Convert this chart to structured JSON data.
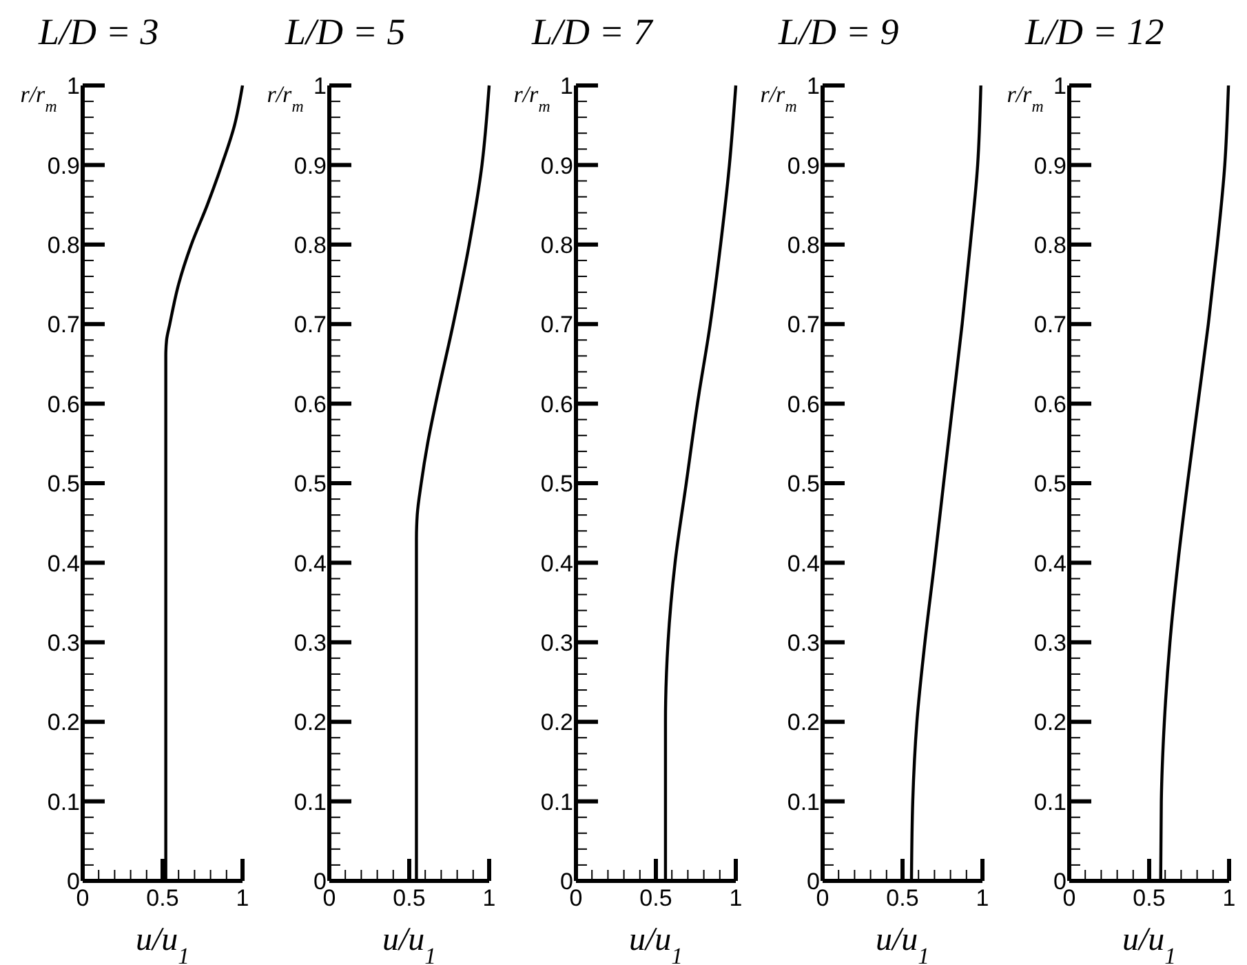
{
  "chart_data": [
    {
      "type": "line",
      "title": "L/D = 3",
      "xlabel": "u/u$_{1}$",
      "ylabel": "r/r$_{m}$",
      "xlim": [
        0,
        1
      ],
      "ylim": [
        0,
        1
      ],
      "line_style": "solid",
      "marker": "none",
      "grid": false,
      "xticks": [
        0,
        {
          "value": 0.1,
          "label": null
        },
        {
          "value": 0.2,
          "label": null
        },
        {
          "value": 0.3,
          "label": null
        },
        {
          "value": 0.4,
          "label": null
        },
        0.5,
        {
          "value": 0.6,
          "label": null
        },
        {
          "value": 0.7,
          "label": null
        },
        {
          "value": 0.8,
          "label": null
        },
        {
          "value": 0.9,
          "label": null
        },
        1
      ],
      "yticks": [
        0,
        {
          "value": 0.02,
          "label": null
        },
        {
          "value": 0.04,
          "label": null
        },
        {
          "value": 0.06,
          "label": null
        },
        {
          "value": 0.08,
          "label": null
        },
        0.1,
        {
          "value": 0.12,
          "label": null
        },
        {
          "value": 0.14,
          "label": null
        },
        {
          "value": 0.16,
          "label": null
        },
        {
          "value": 0.18,
          "label": null
        },
        0.2,
        {
          "value": 0.22,
          "label": null
        },
        {
          "value": 0.24,
          "label": null
        },
        {
          "value": 0.26,
          "label": null
        },
        {
          "value": 0.28,
          "label": null
        },
        0.3,
        {
          "value": 0.32,
          "label": null
        },
        {
          "value": 0.34,
          "label": null
        },
        {
          "value": 0.36,
          "label": null
        },
        {
          "value": 0.38,
          "label": null
        },
        0.4,
        {
          "value": 0.42,
          "label": null
        },
        {
          "value": 0.44,
          "label": null
        },
        {
          "value": 0.46,
          "label": null
        },
        {
          "value": 0.48,
          "label": null
        },
        0.5,
        {
          "value": 0.52,
          "label": null
        },
        {
          "value": 0.54,
          "label": null
        },
        {
          "value": 0.56,
          "label": null
        },
        {
          "value": 0.58,
          "label": null
        },
        0.6,
        {
          "value": 0.62,
          "label": null
        },
        {
          "value": 0.64,
          "label": null
        },
        {
          "value": 0.66,
          "label": null
        },
        {
          "value": 0.68,
          "label": null
        },
        0.7,
        {
          "value": 0.72,
          "label": null
        },
        {
          "value": 0.74,
          "label": null
        },
        {
          "value": 0.76,
          "label": null
        },
        {
          "value": 0.78,
          "label": null
        },
        0.8,
        {
          "value": 0.82,
          "label": null
        },
        {
          "value": 0.84,
          "label": null
        },
        {
          "value": 0.86,
          "label": null
        },
        {
          "value": 0.88,
          "label": null
        },
        0.9,
        {
          "value": 0.92,
          "label": null
        },
        {
          "value": 0.94,
          "label": null
        },
        {
          "value": 0.96,
          "label": null
        },
        {
          "value": 0.98,
          "label": null
        },
        1
      ],
      "series": [
        {
          "color": "#000000",
          "x": [
            0.52,
            0.52,
            0.525,
            0.545,
            0.6,
            0.68,
            0.78,
            0.87,
            0.95,
            1.0
          ],
          "values": [
            0,
            0.66,
            0.68,
            0.7,
            0.75,
            0.8,
            0.85,
            0.9,
            0.95,
            1
          ]
        }
      ]
    },
    {
      "type": "line",
      "title": "L/D = 5",
      "xlabel": "u/u$_{1}$",
      "ylabel": "r/r$_{m}$",
      "xlim": [
        0,
        1
      ],
      "ylim": [
        0,
        1
      ],
      "line_style": "solid",
      "marker": "none",
      "grid": false,
      "xticks": [
        0,
        {
          "value": 0.1,
          "label": null
        },
        {
          "value": 0.2,
          "label": null
        },
        {
          "value": 0.3,
          "label": null
        },
        {
          "value": 0.4,
          "label": null
        },
        0.5,
        {
          "value": 0.6,
          "label": null
        },
        {
          "value": 0.7,
          "label": null
        },
        {
          "value": 0.8,
          "label": null
        },
        {
          "value": 0.9,
          "label": null
        },
        1
      ],
      "yticks": [
        0,
        {
          "value": 0.02,
          "label": null
        },
        {
          "value": 0.04,
          "label": null
        },
        {
          "value": 0.06,
          "label": null
        },
        {
          "value": 0.08,
          "label": null
        },
        0.1,
        {
          "value": 0.12,
          "label": null
        },
        {
          "value": 0.14,
          "label": null
        },
        {
          "value": 0.16,
          "label": null
        },
        {
          "value": 0.18,
          "label": null
        },
        0.2,
        {
          "value": 0.22,
          "label": null
        },
        {
          "value": 0.24,
          "label": null
        },
        {
          "value": 0.26,
          "label": null
        },
        {
          "value": 0.28,
          "label": null
        },
        0.3,
        {
          "value": 0.32,
          "label": null
        },
        {
          "value": 0.34,
          "label": null
        },
        {
          "value": 0.36,
          "label": null
        },
        {
          "value": 0.38,
          "label": null
        },
        0.4,
        {
          "value": 0.42,
          "label": null
        },
        {
          "value": 0.44,
          "label": null
        },
        {
          "value": 0.46,
          "label": null
        },
        {
          "value": 0.48,
          "label": null
        },
        0.5,
        {
          "value": 0.52,
          "label": null
        },
        {
          "value": 0.54,
          "label": null
        },
        {
          "value": 0.56,
          "label": null
        },
        {
          "value": 0.58,
          "label": null
        },
        0.6,
        {
          "value": 0.62,
          "label": null
        },
        {
          "value": 0.64,
          "label": null
        },
        {
          "value": 0.66,
          "label": null
        },
        {
          "value": 0.68,
          "label": null
        },
        0.7,
        {
          "value": 0.72,
          "label": null
        },
        {
          "value": 0.74,
          "label": null
        },
        {
          "value": 0.76,
          "label": null
        },
        {
          "value": 0.78,
          "label": null
        },
        0.8,
        {
          "value": 0.82,
          "label": null
        },
        {
          "value": 0.84,
          "label": null
        },
        {
          "value": 0.86,
          "label": null
        },
        {
          "value": 0.88,
          "label": null
        },
        0.9,
        {
          "value": 0.92,
          "label": null
        },
        {
          "value": 0.94,
          "label": null
        },
        {
          "value": 0.96,
          "label": null
        },
        {
          "value": 0.98,
          "label": null
        },
        1
      ],
      "series": [
        {
          "color": "#000000",
          "x": [
            0.545,
            0.545,
            0.55,
            0.575,
            0.615,
            0.665,
            0.775,
            0.875,
            0.955,
            1.0
          ],
          "values": [
            0,
            0.43,
            0.46,
            0.5,
            0.55,
            0.6,
            0.7,
            0.8,
            0.9,
            1
          ]
        }
      ]
    },
    {
      "type": "line",
      "title": "L/D = 7",
      "xlabel": "u/u$_{1}$",
      "ylabel": "r/r$_{m}$",
      "xlim": [
        0,
        1
      ],
      "ylim": [
        0,
        1
      ],
      "line_style": "solid",
      "marker": "none",
      "grid": false,
      "xticks": [
        0,
        {
          "value": 0.1,
          "label": null
        },
        {
          "value": 0.2,
          "label": null
        },
        {
          "value": 0.3,
          "label": null
        },
        {
          "value": 0.4,
          "label": null
        },
        0.5,
        {
          "value": 0.6,
          "label": null
        },
        {
          "value": 0.7,
          "label": null
        },
        {
          "value": 0.8,
          "label": null
        },
        {
          "value": 0.9,
          "label": null
        },
        1
      ],
      "yticks": [
        0,
        {
          "value": 0.02,
          "label": null
        },
        {
          "value": 0.04,
          "label": null
        },
        {
          "value": 0.06,
          "label": null
        },
        {
          "value": 0.08,
          "label": null
        },
        0.1,
        {
          "value": 0.12,
          "label": null
        },
        {
          "value": 0.14,
          "label": null
        },
        {
          "value": 0.16,
          "label": null
        },
        {
          "value": 0.18,
          "label": null
        },
        0.2,
        {
          "value": 0.22,
          "label": null
        },
        {
          "value": 0.24,
          "label": null
        },
        {
          "value": 0.26,
          "label": null
        },
        {
          "value": 0.28,
          "label": null
        },
        0.3,
        {
          "value": 0.32,
          "label": null
        },
        {
          "value": 0.34,
          "label": null
        },
        {
          "value": 0.36,
          "label": null
        },
        {
          "value": 0.38,
          "label": null
        },
        0.4,
        {
          "value": 0.42,
          "label": null
        },
        {
          "value": 0.44,
          "label": null
        },
        {
          "value": 0.46,
          "label": null
        },
        {
          "value": 0.48,
          "label": null
        },
        0.5,
        {
          "value": 0.52,
          "label": null
        },
        {
          "value": 0.54,
          "label": null
        },
        {
          "value": 0.56,
          "label": null
        },
        {
          "value": 0.58,
          "label": null
        },
        0.6,
        {
          "value": 0.62,
          "label": null
        },
        {
          "value": 0.64,
          "label": null
        },
        {
          "value": 0.66,
          "label": null
        },
        {
          "value": 0.68,
          "label": null
        },
        0.7,
        {
          "value": 0.72,
          "label": null
        },
        {
          "value": 0.74,
          "label": null
        },
        {
          "value": 0.76,
          "label": null
        },
        {
          "value": 0.78,
          "label": null
        },
        0.8,
        {
          "value": 0.82,
          "label": null
        },
        {
          "value": 0.84,
          "label": null
        },
        {
          "value": 0.86,
          "label": null
        },
        {
          "value": 0.88,
          "label": null
        },
        0.9,
        {
          "value": 0.92,
          "label": null
        },
        {
          "value": 0.94,
          "label": null
        },
        {
          "value": 0.96,
          "label": null
        },
        {
          "value": 0.98,
          "label": null
        },
        1
      ],
      "series": [
        {
          "color": "#000000",
          "x": [
            0.56,
            0.56,
            0.576,
            0.62,
            0.69,
            0.76,
            0.84,
            0.905,
            0.96,
            1.0
          ],
          "values": [
            0,
            0.2,
            0.3,
            0.4,
            0.5,
            0.6,
            0.7,
            0.8,
            0.9,
            1
          ]
        }
      ]
    },
    {
      "type": "line",
      "title": "L/D = 9",
      "xlabel": "u/u$_{1}$",
      "ylabel": "r/r$_{m}$",
      "xlim": [
        0,
        1
      ],
      "ylim": [
        0,
        1
      ],
      "line_style": "solid",
      "marker": "none",
      "grid": false,
      "xticks": [
        0,
        {
          "value": 0.1,
          "label": null
        },
        {
          "value": 0.2,
          "label": null
        },
        {
          "value": 0.3,
          "label": null
        },
        {
          "value": 0.4,
          "label": null
        },
        0.5,
        {
          "value": 0.6,
          "label": null
        },
        {
          "value": 0.7,
          "label": null
        },
        {
          "value": 0.8,
          "label": null
        },
        {
          "value": 0.9,
          "label": null
        },
        1
      ],
      "yticks": [
        0,
        {
          "value": 0.02,
          "label": null
        },
        {
          "value": 0.04,
          "label": null
        },
        {
          "value": 0.06,
          "label": null
        },
        {
          "value": 0.08,
          "label": null
        },
        0.1,
        {
          "value": 0.12,
          "label": null
        },
        {
          "value": 0.14,
          "label": null
        },
        {
          "value": 0.16,
          "label": null
        },
        {
          "value": 0.18,
          "label": null
        },
        0.2,
        {
          "value": 0.22,
          "label": null
        },
        {
          "value": 0.24,
          "label": null
        },
        {
          "value": 0.26,
          "label": null
        },
        {
          "value": 0.28,
          "label": null
        },
        0.3,
        {
          "value": 0.32,
          "label": null
        },
        {
          "value": 0.34,
          "label": null
        },
        {
          "value": 0.36,
          "label": null
        },
        {
          "value": 0.38,
          "label": null
        },
        0.4,
        {
          "value": 0.42,
          "label": null
        },
        {
          "value": 0.44,
          "label": null
        },
        {
          "value": 0.46,
          "label": null
        },
        {
          "value": 0.48,
          "label": null
        },
        0.5,
        {
          "value": 0.52,
          "label": null
        },
        {
          "value": 0.54,
          "label": null
        },
        {
          "value": 0.56,
          "label": null
        },
        {
          "value": 0.58,
          "label": null
        },
        0.6,
        {
          "value": 0.62,
          "label": null
        },
        {
          "value": 0.64,
          "label": null
        },
        {
          "value": 0.66,
          "label": null
        },
        {
          "value": 0.68,
          "label": null
        },
        0.7,
        {
          "value": 0.72,
          "label": null
        },
        {
          "value": 0.74,
          "label": null
        },
        {
          "value": 0.76,
          "label": null
        },
        {
          "value": 0.78,
          "label": null
        },
        0.8,
        {
          "value": 0.82,
          "label": null
        },
        {
          "value": 0.84,
          "label": null
        },
        {
          "value": 0.86,
          "label": null
        },
        {
          "value": 0.88,
          "label": null
        },
        0.9,
        {
          "value": 0.92,
          "label": null
        },
        {
          "value": 0.94,
          "label": null
        },
        {
          "value": 0.96,
          "label": null
        },
        {
          "value": 0.98,
          "label": null
        },
        1
      ],
      "series": [
        {
          "color": "#000000",
          "x": [
            0.556,
            0.564,
            0.59,
            0.64,
            0.7,
            0.757,
            0.815,
            0.873,
            0.924,
            0.97,
            0.99
          ],
          "values": [
            0,
            0.1,
            0.2,
            0.3,
            0.4,
            0.5,
            0.6,
            0.7,
            0.8,
            0.9,
            1
          ]
        }
      ]
    },
    {
      "type": "line",
      "title": "L/D = 12",
      "xlabel": "u/u$_{1}$",
      "ylabel": "r/r$_{m}$",
      "xlim": [
        0,
        1
      ],
      "ylim": [
        0,
        1
      ],
      "line_style": "solid",
      "marker": "none",
      "grid": false,
      "xticks": [
        0,
        {
          "value": 0.1,
          "label": null
        },
        {
          "value": 0.2,
          "label": null
        },
        {
          "value": 0.3,
          "label": null
        },
        {
          "value": 0.4,
          "label": null
        },
        0.5,
        {
          "value": 0.6,
          "label": null
        },
        {
          "value": 0.7,
          "label": null
        },
        {
          "value": 0.8,
          "label": null
        },
        {
          "value": 0.9,
          "label": null
        },
        1
      ],
      "yticks": [
        0,
        {
          "value": 0.02,
          "label": null
        },
        {
          "value": 0.04,
          "label": null
        },
        {
          "value": 0.06,
          "label": null
        },
        {
          "value": 0.08,
          "label": null
        },
        0.1,
        {
          "value": 0.12,
          "label": null
        },
        {
          "value": 0.14,
          "label": null
        },
        {
          "value": 0.16,
          "label": null
        },
        {
          "value": 0.18,
          "label": null
        },
        0.2,
        {
          "value": 0.22,
          "label": null
        },
        {
          "value": 0.24,
          "label": null
        },
        {
          "value": 0.26,
          "label": null
        },
        {
          "value": 0.28,
          "label": null
        },
        0.3,
        {
          "value": 0.32,
          "label": null
        },
        {
          "value": 0.34,
          "label": null
        },
        {
          "value": 0.36,
          "label": null
        },
        {
          "value": 0.38,
          "label": null
        },
        0.4,
        {
          "value": 0.42,
          "label": null
        },
        {
          "value": 0.44,
          "label": null
        },
        {
          "value": 0.46,
          "label": null
        },
        {
          "value": 0.48,
          "label": null
        },
        0.5,
        {
          "value": 0.52,
          "label": null
        },
        {
          "value": 0.54,
          "label": null
        },
        {
          "value": 0.56,
          "label": null
        },
        {
          "value": 0.58,
          "label": null
        },
        0.6,
        {
          "value": 0.62,
          "label": null
        },
        {
          "value": 0.64,
          "label": null
        },
        {
          "value": 0.66,
          "label": null
        },
        {
          "value": 0.68,
          "label": null
        },
        0.7,
        {
          "value": 0.72,
          "label": null
        },
        {
          "value": 0.74,
          "label": null
        },
        {
          "value": 0.76,
          "label": null
        },
        {
          "value": 0.78,
          "label": null
        },
        0.8,
        {
          "value": 0.82,
          "label": null
        },
        {
          "value": 0.84,
          "label": null
        },
        {
          "value": 0.86,
          "label": null
        },
        {
          "value": 0.88,
          "label": null
        },
        0.9,
        {
          "value": 0.92,
          "label": null
        },
        {
          "value": 0.94,
          "label": null
        },
        {
          "value": 0.96,
          "label": null
        },
        {
          "value": 0.98,
          "label": null
        },
        1
      ],
      "series": [
        {
          "color": "#000000",
          "x": [
            0.572,
            0.576,
            0.595,
            0.63,
            0.68,
            0.74,
            0.805,
            0.87,
            0.926,
            0.973,
            0.996
          ],
          "values": [
            0,
            0.1,
            0.2,
            0.3,
            0.4,
            0.5,
            0.6,
            0.7,
            0.8,
            0.9,
            1
          ]
        }
      ]
    }
  ]
}
